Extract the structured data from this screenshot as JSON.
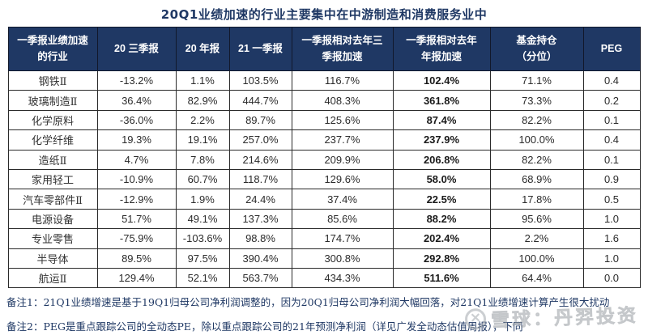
{
  "title": "20Q1业绩加速的行业主要集中在中游制造和消费服务业中",
  "table": {
    "columns": [
      {
        "name": "industry",
        "lines": [
          "一季报业绩加速",
          "的行业"
        ]
      },
      {
        "name": "q3-2020",
        "lines": [
          "20 三季报"
        ]
      },
      {
        "name": "fy-2020",
        "lines": [
          "20 年报"
        ]
      },
      {
        "name": "q1-2021",
        "lines": [
          "21 一季报"
        ]
      },
      {
        "name": "accel-vs-q3",
        "lines": [
          "一季报相对去年三",
          "季报加速"
        ]
      },
      {
        "name": "accel-vs-fy",
        "lines": [
          "一季报相对去年",
          "年报加速"
        ]
      },
      {
        "name": "fund-position",
        "lines": [
          "基金持仓",
          "（分位）"
        ]
      },
      {
        "name": "peg",
        "lines": [
          "PEG"
        ]
      }
    ],
    "rows": [
      [
        "钢铁Ⅱ",
        "-13.2%",
        "1.1%",
        "103.5%",
        "116.7%",
        "102.4%",
        "71.1%",
        "0.4"
      ],
      [
        "玻璃制造Ⅱ",
        "36.4%",
        "82.9%",
        "444.7%",
        "408.3%",
        "361.8%",
        "73.3%",
        "0.2"
      ],
      [
        "化学原料",
        "-36.0%",
        "2.2%",
        "89.7%",
        "125.6%",
        "87.4%",
        "82.2%",
        "0.1"
      ],
      [
        "化学纤维",
        "19.3%",
        "19.1%",
        "257.0%",
        "237.7%",
        "237.9%",
        "100.0%",
        "0.4"
      ],
      [
        "造纸Ⅱ",
        "4.7%",
        "7.8%",
        "214.6%",
        "209.9%",
        "206.8%",
        "82.2%",
        "0.1"
      ],
      [
        "家用轻工",
        "-10.9%",
        "60.7%",
        "118.7%",
        "129.6%",
        "58.0%",
        "68.9%",
        "0.9"
      ],
      [
        "汽车零部件Ⅱ",
        "-12.9%",
        "1.9%",
        "24.4%",
        "37.4%",
        "22.5%",
        "17.8%",
        "0.5"
      ],
      [
        "电源设备",
        "51.7%",
        "49.1%",
        "137.3%",
        "85.6%",
        "88.2%",
        "95.6%",
        "1.0"
      ],
      [
        "专业零售",
        "-75.9%",
        "-103.6%",
        "98.8%",
        "174.7%",
        "202.4%",
        "2.2%",
        "1.6"
      ],
      [
        "半导体",
        "89.5%",
        "97.5%",
        "390.4%",
        "300.8%",
        "292.8%",
        "100.0%",
        "1.0"
      ],
      [
        "航运Ⅱ",
        "129.4%",
        "52.1%",
        "563.7%",
        "434.3%",
        "511.6%",
        "64.4%",
        "0.0"
      ]
    ]
  },
  "notes": [
    "备注1：21Q1业绩增速是基于19Q1归母公司净利润调整的，因为20Q1归母公司净利润大幅回落，对21Q1业绩增速计算产生很大扰动",
    "备注2：PEG是重点跟踪公司的全动态PE，除以重点跟踪公司的21年预测净利润（详见广发全动态估值周报），下同"
  ],
  "watermark": {
    "logo_glyph": "✕",
    "text": "雪球：丹羿投资"
  },
  "colors": {
    "header_bg": "#1f3864",
    "header_text": "#ffffff",
    "title_text": "#1f3864",
    "note_text": "#1f3864",
    "watermark_gray": "#9aa0a6"
  }
}
